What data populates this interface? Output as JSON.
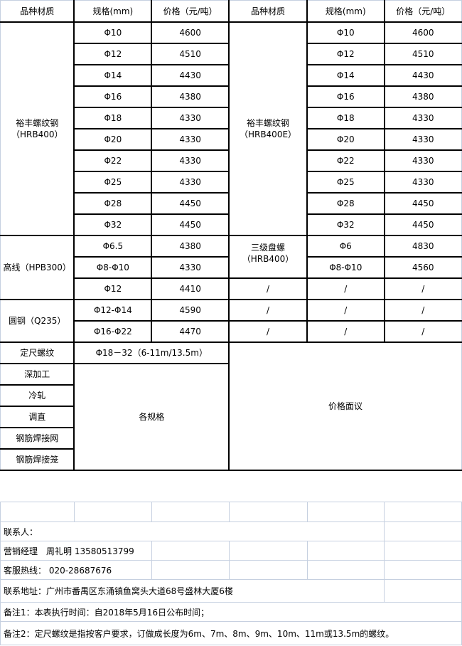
{
  "headers": [
    "品种材质",
    "规格(mm)",
    "价格（元/吨）",
    "品种材质",
    "规格(mm)",
    "价格（元/吨）"
  ],
  "group1": {
    "left_name": "裕丰螺纹钢\n（HRB400）",
    "right_name": "裕丰螺纹钢\n（HRB400E）",
    "rows": [
      [
        "Φ10",
        "4600",
        "Φ10",
        "4600"
      ],
      [
        "Φ12",
        "4510",
        "Φ12",
        "4510"
      ],
      [
        "Φ14",
        "4430",
        "Φ14",
        "4430"
      ],
      [
        "Φ16",
        "4380",
        "Φ16",
        "4380"
      ],
      [
        "Φ18",
        "4330",
        "Φ18",
        "4330"
      ],
      [
        "Φ20",
        "4330",
        "Φ20",
        "4330"
      ],
      [
        "Φ22",
        "4330",
        "Φ22",
        "4330"
      ],
      [
        "Φ25",
        "4330",
        "Φ25",
        "4330"
      ],
      [
        "Φ28",
        "4450",
        "Φ28",
        "4450"
      ],
      [
        "Φ32",
        "4450",
        "Φ32",
        "4450"
      ]
    ]
  },
  "group2": {
    "left_name": "高线（HPB300）",
    "right_name": "三级盘螺\n（HRB400）",
    "rows": [
      [
        "Φ6.5",
        "4380",
        "Φ6",
        "4830"
      ],
      [
        "Φ8-Φ10",
        "4330",
        "Φ8-Φ10",
        "4560"
      ],
      [
        "Φ12",
        "4410",
        "/",
        "/",
        "/"
      ]
    ]
  },
  "group3": {
    "left_name": "圆钢（Q235）",
    "rows": [
      [
        "Φ12-Φ14",
        "4590",
        "/",
        "/",
        "/"
      ],
      [
        "Φ16-Φ22",
        "4470",
        "/",
        "/",
        "/"
      ]
    ]
  },
  "special": {
    "fixed_label": "定尺螺纹",
    "fixed_spec": "Φ18－32（6-11m/13.5m）",
    "negotiable": "价格面议",
    "all_specs": "各规格",
    "items": [
      "深加工",
      "冷轧",
      "调直",
      "钢筋焊接网",
      "钢筋焊接笼"
    ]
  },
  "contact": {
    "contact_label": "联系人：",
    "manager": "营销经理　周礼明 13580513799",
    "hotline": "客服热线： 020-28687676",
    "address": "联系地址：广州市番禺区东涌镇鱼窝头大道68号盛林大厦6楼",
    "note1": "备注1：本表执行时间：自2018年5月16日公布时间；",
    "note2": "备注2：定尺螺纹是指按客户要求，订做成长度为6m、7m、8m、9m、10m、11m或13.5m的螺纹。"
  }
}
